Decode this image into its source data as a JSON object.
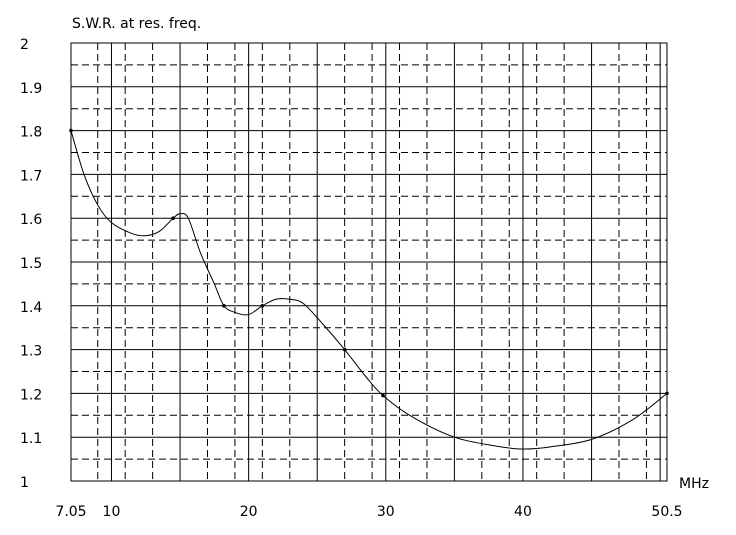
{
  "chart_data": {
    "type": "line",
    "title": "S.W.R.  at  res.  freq.",
    "xlabel": "MHz",
    "ylabel": "",
    "xlim": [
      7.05,
      50.5
    ],
    "ylim": [
      1.0,
      2.0
    ],
    "x_ticks": [
      7.05,
      10,
      20,
      30,
      40,
      50.5
    ],
    "x_tick_labels": [
      "7.05",
      "10",
      "20",
      "30",
      "40",
      "50.5"
    ],
    "y_ticks": [
      1.0,
      1.1,
      1.2,
      1.3,
      1.4,
      1.5,
      1.6,
      1.7,
      1.8,
      1.9,
      2.0
    ],
    "y_tick_labels": [
      "1",
      "1.1",
      "1.2",
      "1.3",
      "1.4",
      "1.5",
      "1.6",
      "1.7",
      "1.8",
      "1.9",
      "2"
    ],
    "grid": true,
    "series": [
      {
        "points": [
          {
            "x": 7.05,
            "y": 1.8,
            "marker": true
          },
          {
            "x": 8.0,
            "y": 1.7,
            "marker": false
          },
          {
            "x": 9.0,
            "y": 1.63,
            "marker": false
          },
          {
            "x": 10.0,
            "y": 1.59,
            "marker": false
          },
          {
            "x": 11.5,
            "y": 1.565,
            "marker": false
          },
          {
            "x": 12.5,
            "y": 1.56,
            "marker": false
          },
          {
            "x": 13.5,
            "y": 1.57,
            "marker": false
          },
          {
            "x": 14.5,
            "y": 1.6,
            "marker": true
          },
          {
            "x": 15.0,
            "y": 1.61,
            "marker": false
          },
          {
            "x": 15.6,
            "y": 1.6,
            "marker": false
          },
          {
            "x": 16.5,
            "y": 1.52,
            "marker": false
          },
          {
            "x": 17.5,
            "y": 1.45,
            "marker": false
          },
          {
            "x": 18.2,
            "y": 1.4,
            "marker": true
          },
          {
            "x": 19.0,
            "y": 1.385,
            "marker": false
          },
          {
            "x": 20.0,
            "y": 1.38,
            "marker": false
          },
          {
            "x": 21.0,
            "y": 1.4,
            "marker": true
          },
          {
            "x": 22.0,
            "y": 1.415,
            "marker": false
          },
          {
            "x": 23.0,
            "y": 1.415,
            "marker": false
          },
          {
            "x": 24.0,
            "y": 1.405,
            "marker": false
          },
          {
            "x": 25.5,
            "y": 1.355,
            "marker": false
          },
          {
            "x": 27.0,
            "y": 1.3,
            "marker": true
          },
          {
            "x": 28.5,
            "y": 1.24,
            "marker": false
          },
          {
            "x": 29.8,
            "y": 1.195,
            "marker": true
          },
          {
            "x": 32.0,
            "y": 1.145,
            "marker": false
          },
          {
            "x": 35.0,
            "y": 1.1,
            "marker": false
          },
          {
            "x": 38.0,
            "y": 1.08,
            "marker": false
          },
          {
            "x": 40.0,
            "y": 1.073,
            "marker": false
          },
          {
            "x": 42.0,
            "y": 1.078,
            "marker": false
          },
          {
            "x": 45.0,
            "y": 1.095,
            "marker": false
          },
          {
            "x": 48.0,
            "y": 1.14,
            "marker": false
          },
          {
            "x": 50.5,
            "y": 1.2,
            "marker": true
          }
        ]
      }
    ]
  }
}
